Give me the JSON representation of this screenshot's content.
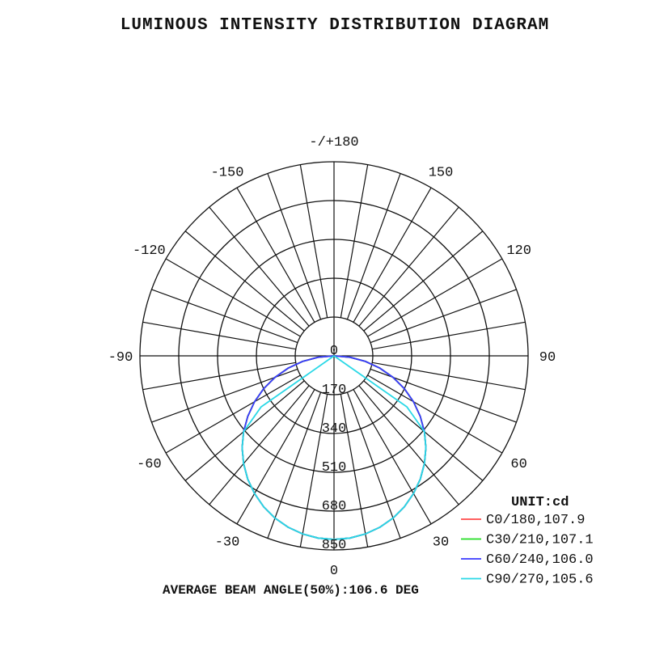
{
  "title": "LUMINOUS INTENSITY DISTRIBUTION DIAGRAM",
  "footer": "AVERAGE BEAM ANGLE(50%):106.6 DEG",
  "chart_data": {
    "type": "polar",
    "title": "LUMINOUS INTENSITY DISTRIBUTION DIAGRAM",
    "unit_label": "UNIT:cd",
    "radial_max": 850,
    "radial_ticks": [
      0,
      170,
      340,
      510,
      680,
      850
    ],
    "angle_ticks": [
      {
        "angle": 180,
        "label": "-/+180"
      },
      {
        "angle": 150,
        "label": "150"
      },
      {
        "angle": -150,
        "label": "-150"
      },
      {
        "angle": 120,
        "label": "120"
      },
      {
        "angle": -120,
        "label": "-120"
      },
      {
        "angle": 90,
        "label": "90"
      },
      {
        "angle": -90,
        "label": "-90"
      },
      {
        "angle": 60,
        "label": "60"
      },
      {
        "angle": -60,
        "label": "-60"
      },
      {
        "angle": 30,
        "label": "30"
      },
      {
        "angle": -30,
        "label": "-30"
      },
      {
        "angle": 0,
        "label": "0"
      }
    ],
    "angle_grid_step": 10,
    "grid": true,
    "legend_position": "bottom-right",
    "angles": [
      -90,
      -85,
      -80,
      -75,
      -70,
      -65,
      -60,
      -55,
      -50,
      -45,
      -40,
      -35,
      -30,
      -25,
      -20,
      -15,
      -10,
      -5,
      0,
      5,
      10,
      15,
      20,
      25,
      30,
      35,
      40,
      45,
      50,
      55,
      60,
      65,
      70,
      75,
      80,
      85,
      90
    ],
    "series": [
      {
        "name": "C0/180,107.9",
        "color": "#ff4a4a",
        "values": [
          0,
          70,
          140,
          208,
          275,
          340,
          402,
          461,
          517,
          569,
          616,
          659,
          696,
          729,
          756,
          777,
          792,
          801,
          804,
          801,
          792,
          777,
          756,
          729,
          696,
          659,
          616,
          569,
          517,
          461,
          402,
          340,
          275,
          208,
          140,
          70,
          0
        ]
      },
      {
        "name": "C30/210,107.1",
        "color": "#22dd22",
        "values": [
          0,
          70,
          140,
          208,
          275,
          340,
          402,
          461,
          517,
          569,
          616,
          659,
          696,
          729,
          756,
          777,
          792,
          801,
          804,
          801,
          792,
          777,
          756,
          729,
          696,
          659,
          616,
          569,
          517,
          461,
          402,
          340,
          275,
          208,
          140,
          70,
          0
        ]
      },
      {
        "name": "C60/240,106.0",
        "color": "#3a3aff",
        "values": [
          0,
          70,
          140,
          208,
          275,
          340,
          402,
          461,
          517,
          569,
          616,
          659,
          696,
          729,
          756,
          777,
          792,
          801,
          804,
          801,
          792,
          777,
          756,
          729,
          696,
          659,
          616,
          569,
          517,
          461,
          402,
          340,
          275,
          208,
          140,
          70,
          0
        ]
      },
      {
        "name": "C90/270,105.6",
        "color": "#2ad8e6",
        "values": [
          0,
          0,
          0,
          0,
          0,
          0,
          0,
          390,
          517,
          569,
          616,
          659,
          696,
          729,
          756,
          777,
          792,
          801,
          804,
          801,
          792,
          777,
          756,
          729,
          696,
          659,
          616,
          569,
          517,
          390,
          0,
          0,
          0,
          0,
          0,
          0,
          0
        ]
      }
    ],
    "beam_angle_label": "AVERAGE BEAM ANGLE(50%):106.6 DEG"
  }
}
